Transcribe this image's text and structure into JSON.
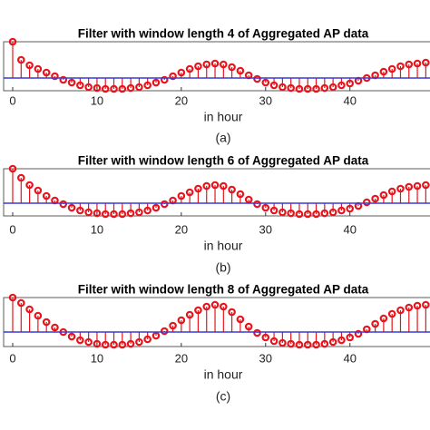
{
  "chart_data": [
    {
      "type": "stem",
      "title": "Filter with window length 4 of Aggregated AP data",
      "xlabel": "in hour",
      "caption": "(a)",
      "x": [
        0,
        1,
        2,
        3,
        4,
        5,
        6,
        7,
        8,
        9,
        10,
        11,
        12,
        13,
        14,
        15,
        16,
        17,
        18,
        19,
        20,
        21,
        22,
        23,
        24,
        25,
        26,
        27,
        28,
        29,
        30,
        31,
        32,
        33,
        34,
        35,
        36,
        37,
        38,
        39,
        40,
        41,
        42,
        43,
        44,
        45,
        46,
        47,
        48,
        49
      ],
      "values": [
        40,
        20,
        14,
        10,
        6,
        2,
        -2,
        -5,
        -8,
        -10,
        -11,
        -12,
        -12,
        -12,
        -11,
        -10,
        -8,
        -5,
        -2,
        2,
        6,
        10,
        13,
        15,
        16,
        15,
        12,
        8,
        3,
        -1,
        -5,
        -8,
        -10,
        -11,
        -12,
        -12,
        -12,
        -11,
        -10,
        -8,
        -6,
        -3,
        0,
        3,
        7,
        10,
        13,
        15,
        16,
        17
      ],
      "color": "#e8141c",
      "baseline_color": "#3a3ad6",
      "xlim": [
        0,
        49.5
      ],
      "xticks": [
        0,
        10,
        20,
        30,
        40
      ],
      "ylim": [
        -14,
        40
      ]
    },
    {
      "type": "stem",
      "title": "Filter with window length 6 of Aggregated AP data",
      "xlabel": "in hour",
      "caption": "(b)",
      "x": [
        0,
        1,
        2,
        3,
        4,
        5,
        6,
        7,
        8,
        9,
        10,
        11,
        12,
        13,
        14,
        15,
        16,
        17,
        18,
        19,
        20,
        21,
        22,
        23,
        24,
        25,
        26,
        27,
        28,
        29,
        30,
        31,
        32,
        33,
        34,
        35,
        36,
        37,
        38,
        39,
        40,
        41,
        42,
        43,
        44,
        45,
        46,
        47,
        48,
        49
      ],
      "values": [
        38,
        28,
        20,
        14,
        8,
        3,
        -1,
        -5,
        -8,
        -10,
        -11,
        -12,
        -12,
        -12,
        -11,
        -10,
        -8,
        -5,
        -1,
        3,
        8,
        12,
        16,
        19,
        20,
        19,
        15,
        10,
        4,
        -1,
        -5,
        -8,
        -10,
        -11,
        -12,
        -12,
        -12,
        -11,
        -10,
        -8,
        -6,
        -3,
        1,
        5,
        9,
        13,
        16,
        18,
        19,
        20
      ],
      "color": "#e8141c",
      "baseline_color": "#3a3ad6",
      "xlim": [
        0,
        49.5
      ],
      "xticks": [
        0,
        10,
        20,
        30,
        40
      ],
      "ylim": [
        -14,
        38
      ]
    },
    {
      "type": "stem",
      "title": "Filter with window length 8 of Aggregated AP data",
      "xlabel": "in hour",
      "caption": "(c)",
      "x": [
        0,
        1,
        2,
        3,
        4,
        5,
        6,
        7,
        8,
        9,
        10,
        11,
        12,
        13,
        14,
        15,
        16,
        17,
        18,
        19,
        20,
        21,
        22,
        23,
        24,
        25,
        26,
        27,
        28,
        29,
        30,
        31,
        32,
        33,
        34,
        35,
        36,
        37,
        38,
        39,
        40,
        41,
        42,
        43,
        44,
        45,
        46,
        47,
        48,
        49
      ],
      "values": [
        38,
        32,
        25,
        18,
        11,
        5,
        0,
        -5,
        -9,
        -11,
        -13,
        -14,
        -14,
        -14,
        -13,
        -11,
        -8,
        -4,
        1,
        7,
        13,
        19,
        24,
        28,
        30,
        28,
        22,
        14,
        6,
        -1,
        -6,
        -10,
        -12,
        -13,
        -14,
        -14,
        -14,
        -13,
        -11,
        -9,
        -6,
        -2,
        3,
        9,
        15,
        20,
        24,
        27,
        29,
        30
      ],
      "color": "#e8141c",
      "baseline_color": "#3a3ad6",
      "xlim": [
        0,
        49.5
      ],
      "xticks": [
        0,
        10,
        20,
        30,
        40
      ],
      "ylim": [
        -16,
        38
      ]
    }
  ]
}
